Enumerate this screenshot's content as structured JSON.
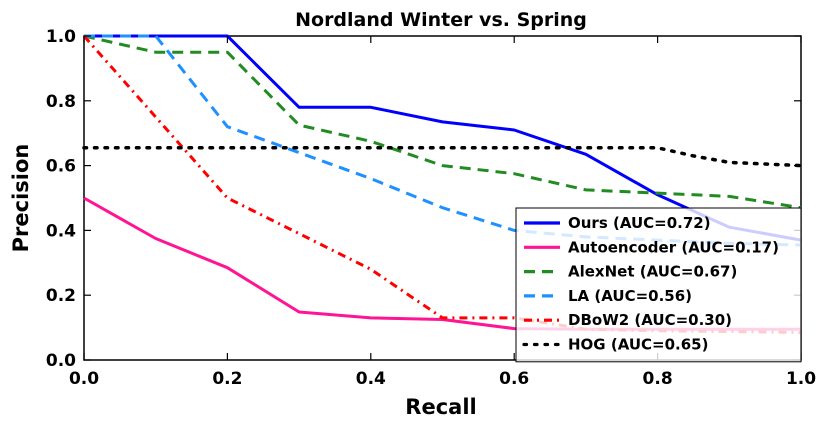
{
  "chart_data": {
    "type": "line",
    "title": "Nordland Winter vs. Spring",
    "xlabel": "Recall",
    "ylabel": "Precision",
    "xlim": [
      0.0,
      1.0
    ],
    "ylim": [
      0.0,
      1.0
    ],
    "xticks": [
      0.0,
      0.2,
      0.4,
      0.6,
      0.8,
      1.0
    ],
    "yticks": [
      0.0,
      0.2,
      0.4,
      0.6,
      0.8,
      1.0
    ],
    "xtick_labels": [
      "0.0",
      "0.2",
      "0.4",
      "0.6",
      "0.8",
      "1.0"
    ],
    "ytick_labels": [
      "0.0",
      "0.2",
      "0.4",
      "0.6",
      "0.8",
      "1.0"
    ],
    "grid": false,
    "legend_position": "lower-right",
    "series": [
      {
        "name": "Ours (AUC=0.72)",
        "color": "#0000ff",
        "linestyle": "solid",
        "x": [
          0.0,
          0.2,
          0.3,
          0.4,
          0.5,
          0.6,
          0.7,
          0.8,
          0.9,
          1.0
        ],
        "y": [
          1.0,
          1.0,
          0.78,
          0.78,
          0.735,
          0.71,
          0.635,
          0.51,
          0.41,
          0.37
        ]
      },
      {
        "name": "Autoencoder (AUC=0.17)",
        "color": "#ff1493",
        "linestyle": "solid",
        "x": [
          0.0,
          0.1,
          0.2,
          0.3,
          0.4,
          0.5,
          0.6,
          0.7,
          0.8,
          0.9,
          1.0
        ],
        "y": [
          0.5,
          0.375,
          0.285,
          0.148,
          0.13,
          0.125,
          0.097,
          0.095,
          0.095,
          0.095,
          0.095
        ]
      },
      {
        "name": "AlexNet (AUC=0.67)",
        "color": "#228b22",
        "linestyle": "dashed",
        "x": [
          0.0,
          0.1,
          0.2,
          0.3,
          0.4,
          0.5,
          0.6,
          0.7,
          0.8,
          0.9,
          1.0
        ],
        "y": [
          1.0,
          0.95,
          0.95,
          0.725,
          0.675,
          0.6,
          0.575,
          0.525,
          0.515,
          0.505,
          0.47
        ]
      },
      {
        "name": "LA (AUC=0.56)",
        "color": "#1e90ff",
        "linestyle": "dashed",
        "x": [
          0.0,
          0.1,
          0.2,
          0.3,
          0.4,
          0.5,
          0.6,
          0.7,
          0.8,
          0.9,
          1.0
        ],
        "y": [
          1.0,
          1.0,
          0.72,
          0.64,
          0.56,
          0.47,
          0.4,
          0.38,
          0.37,
          0.36,
          0.355
        ]
      },
      {
        "name": "DBoW2 (AUC=0.30)",
        "color": "#ff0000",
        "linestyle": "dashdot",
        "x": [
          0.0,
          0.1,
          0.2,
          0.3,
          0.4,
          0.5,
          0.6,
          0.7,
          0.8,
          0.9,
          1.0
        ],
        "y": [
          1.0,
          0.75,
          0.5,
          0.39,
          0.28,
          0.13,
          0.13,
          0.095,
          0.09,
          0.088,
          0.085
        ]
      },
      {
        "name": "HOG (AUC=0.65)",
        "color": "#000000",
        "linestyle": "dotted",
        "x": [
          0.0,
          0.1,
          0.2,
          0.3,
          0.4,
          0.5,
          0.6,
          0.7,
          0.8,
          0.85,
          0.9,
          1.0
        ],
        "y": [
          0.655,
          0.655,
          0.655,
          0.655,
          0.655,
          0.655,
          0.655,
          0.655,
          0.655,
          0.63,
          0.61,
          0.6
        ]
      }
    ]
  }
}
